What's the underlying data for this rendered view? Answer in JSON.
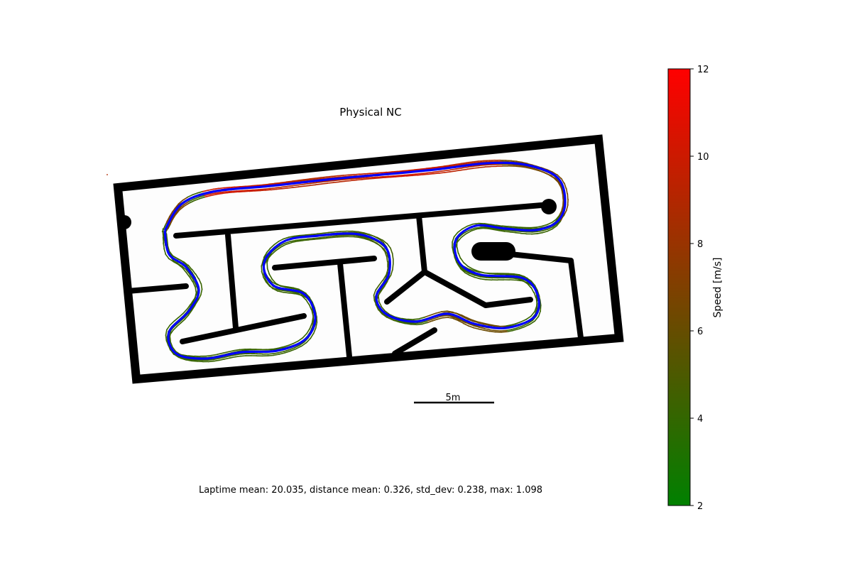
{
  "chart_data": {
    "type": "line",
    "title": "Physical NC",
    "scale_bar_label": "5m",
    "footer": "Laptime mean: 20.035, distance mean: 0.326, std_dev: 0.238, max: 1.098",
    "colorbar": {
      "label": "Speed [m/s]",
      "min": 2,
      "max": 12,
      "ticks": [
        2,
        4,
        6,
        8,
        10,
        12
      ],
      "color_low": "#008000",
      "color_high": "#ff0000"
    },
    "series_colors": {
      "reference": "#0000ff",
      "track_walls": "#000000"
    }
  }
}
